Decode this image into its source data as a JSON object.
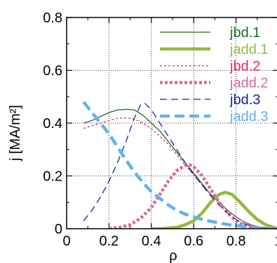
{
  "chart_data": {
    "type": "line",
    "xlabel": "ρ",
    "ylabel": "j [MA/m²]",
    "xlim": [
      0,
      1
    ],
    "ylim": [
      0,
      0.8
    ],
    "xticks": [
      "0",
      "0.2",
      "0.4",
      "0.6",
      "0.8",
      "1"
    ],
    "yticks": [
      "0",
      "0.2",
      "0.4",
      "0.6",
      "0.8"
    ],
    "grid": true,
    "legend_placement": "top-right",
    "series": [
      {
        "name": "jbd.1",
        "color": "#1a6b23",
        "style": "solid",
        "weight": "thin",
        "x": [
          0.08,
          0.12,
          0.16,
          0.2,
          0.24,
          0.28,
          0.32,
          0.36,
          0.4,
          0.44,
          0.48,
          0.52,
          0.56,
          0.6,
          0.64,
          0.68,
          0.72,
          0.76,
          0.8,
          0.84,
          0.88,
          0.92,
          0.96,
          1.0
        ],
        "y": [
          0.4,
          0.41,
          0.425,
          0.44,
          0.45,
          0.452,
          0.45,
          0.43,
          0.4,
          0.37,
          0.33,
          0.29,
          0.25,
          0.21,
          0.17,
          0.13,
          0.1,
          0.07,
          0.045,
          0.025,
          0.012,
          0.005,
          0.002,
          0.0
        ]
      },
      {
        "name": "jadd.1",
        "color": "#95b93c",
        "style": "solid",
        "weight": "thick",
        "x": [
          0.4,
          0.44,
          0.48,
          0.52,
          0.56,
          0.6,
          0.64,
          0.68,
          0.72,
          0.75,
          0.78,
          0.82,
          0.86,
          0.9,
          0.94,
          0.98,
          1.0
        ],
        "y": [
          0.0,
          0.0,
          0.002,
          0.005,
          0.015,
          0.03,
          0.06,
          0.1,
          0.13,
          0.138,
          0.13,
          0.1,
          0.065,
          0.035,
          0.015,
          0.004,
          0.0
        ]
      },
      {
        "name": "jbd.2",
        "color": "#e4246e",
        "style": "dotted",
        "weight": "thin",
        "x": [
          0.08,
          0.12,
          0.16,
          0.2,
          0.24,
          0.28,
          0.32,
          0.36,
          0.4,
          0.44,
          0.48,
          0.52,
          0.56,
          0.6,
          0.64,
          0.68,
          0.72,
          0.76,
          0.8,
          0.84,
          0.88,
          0.92,
          0.96,
          1.0
        ],
        "y": [
          0.38,
          0.39,
          0.4,
          0.41,
          0.418,
          0.42,
          0.415,
          0.4,
          0.38,
          0.35,
          0.32,
          0.28,
          0.24,
          0.205,
          0.165,
          0.13,
          0.1,
          0.07,
          0.045,
          0.025,
          0.012,
          0.005,
          0.002,
          0.0
        ]
      },
      {
        "name": "jadd.2",
        "color": "#d66b9b",
        "style": "dotted",
        "weight": "thick",
        "x": [
          0.2,
          0.25,
          0.3,
          0.35,
          0.4,
          0.44,
          0.48,
          0.52,
          0.56,
          0.58,
          0.6,
          0.64,
          0.68,
          0.72,
          0.76,
          0.8,
          0.84,
          0.88,
          0.92
        ],
        "y": [
          0.0,
          0.005,
          0.015,
          0.04,
          0.08,
          0.13,
          0.18,
          0.22,
          0.24,
          0.242,
          0.235,
          0.2,
          0.15,
          0.1,
          0.06,
          0.03,
          0.012,
          0.004,
          0.0
        ]
      },
      {
        "name": "jbd.3",
        "color": "#15209a",
        "style": "dashed",
        "weight": "thin",
        "x": [
          0.08,
          0.12,
          0.16,
          0.2,
          0.24,
          0.28,
          0.32,
          0.35,
          0.37,
          0.4,
          0.44,
          0.48,
          0.52,
          0.56,
          0.6,
          0.64,
          0.68,
          0.72,
          0.76,
          0.8,
          0.84,
          0.88,
          0.92,
          0.96,
          1.0
        ],
        "y": [
          0.03,
          0.07,
          0.12,
          0.18,
          0.25,
          0.33,
          0.42,
          0.47,
          0.475,
          0.45,
          0.4,
          0.35,
          0.3,
          0.25,
          0.205,
          0.165,
          0.125,
          0.09,
          0.06,
          0.035,
          0.018,
          0.008,
          0.003,
          0.001,
          0.0
        ]
      },
      {
        "name": "jadd.3",
        "color": "#5fb3f0",
        "style": "dashed",
        "weight": "thick",
        "x": [
          0.08,
          0.12,
          0.16,
          0.2,
          0.24,
          0.28,
          0.32,
          0.36,
          0.4,
          0.44,
          0.48,
          0.52,
          0.56,
          0.6,
          0.64,
          0.68,
          0.72,
          0.76,
          0.8,
          0.84,
          0.88,
          0.92,
          0.96,
          1.0
        ],
        "y": [
          0.48,
          0.44,
          0.4,
          0.36,
          0.31,
          0.26,
          0.215,
          0.175,
          0.14,
          0.115,
          0.09,
          0.07,
          0.055,
          0.045,
          0.035,
          0.028,
          0.022,
          0.016,
          0.012,
          0.008,
          0.005,
          0.003,
          0.001,
          0.0
        ]
      }
    ]
  }
}
